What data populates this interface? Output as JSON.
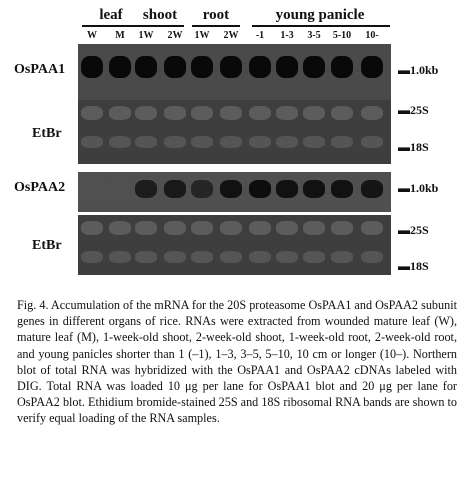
{
  "groups": [
    {
      "label": "leaf"
    },
    {
      "label": "shoot"
    },
    {
      "label": "root"
    },
    {
      "label": "young panicle"
    }
  ],
  "lanes": [
    "W",
    "M",
    "1W",
    "2W",
    "1W",
    "2W",
    "-1",
    "1-3",
    "3-5",
    "5-10",
    "10-"
  ],
  "blots": {
    "paa1": {
      "label": "OsPAA1",
      "mark": "1.0kb"
    },
    "etbr1": {
      "label": "EtBr",
      "mark_top": "25S",
      "mark_bottom": "18S"
    },
    "paa2": {
      "label": "OsPAA2",
      "mark": "1.0kb"
    },
    "etbr2": {
      "label": "EtBr",
      "mark_top": "25S",
      "mark_bottom": "18S"
    }
  },
  "band_levels": {
    "paa1": [
      0.95,
      0.95,
      0.95,
      0.95,
      0.95,
      0.95,
      0.95,
      0.95,
      0.95,
      0.95,
      0.95
    ],
    "paa2": [
      0.05,
      0.05,
      0.7,
      0.75,
      0.6,
      0.85,
      0.9,
      0.85,
      0.85,
      0.85,
      0.8
    ]
  },
  "caption": "Fig. 4. Accumulation of the mRNA for the 20S proteasome OsPAA1 and OsPAA2 subunit genes in different organs of rice. RNAs were extracted from wounded mature leaf (W), mature leaf (M), 1-week-old shoot, 2-week-old shoot, 1-week-old root, 2-week-old root, and young panicles shorter than 1 (–1), 1–3, 3–5, 5–10, 10 cm or longer (10–). Northern blot of total RNA was hybridized with the OsPAA1 and OsPAA2 cDNAs labeled with DIG. Total RNA was loaded 10 μg per lane for OsPAA1 blot and 20 μg per lane for OsPAA2 blot. Ethidium bromide-stained 25S and 18S ribosomal RNA bands are shown to verify equal loading of the RNA samples."
}
